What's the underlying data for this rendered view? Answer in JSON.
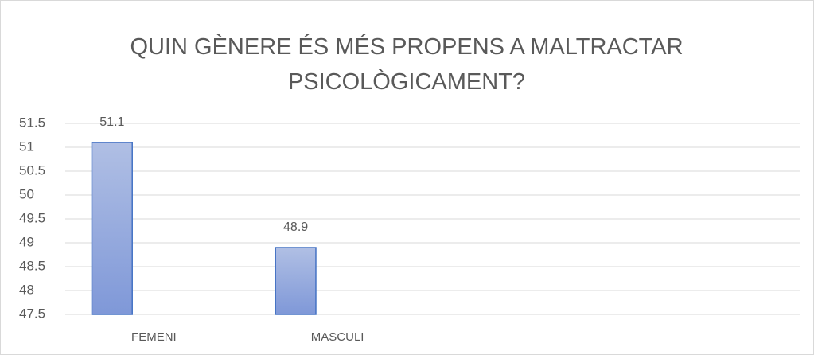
{
  "chart_data": {
    "type": "bar",
    "title": "QUIN GÈNERE ÉS MÉS PROPENS A MALTRACTAR PSICOLÒGICAMENT?",
    "categories": [
      "FEMENI",
      "MASCULI",
      null,
      null
    ],
    "values": [
      51.1,
      48.9,
      null,
      null
    ],
    "color": "#4472c4",
    "ylim": [
      47.5,
      51.5
    ],
    "yticks": [
      47.5,
      48,
      48.5,
      49,
      49.5,
      50,
      50.5,
      51,
      51.5
    ],
    "grid": true
  }
}
